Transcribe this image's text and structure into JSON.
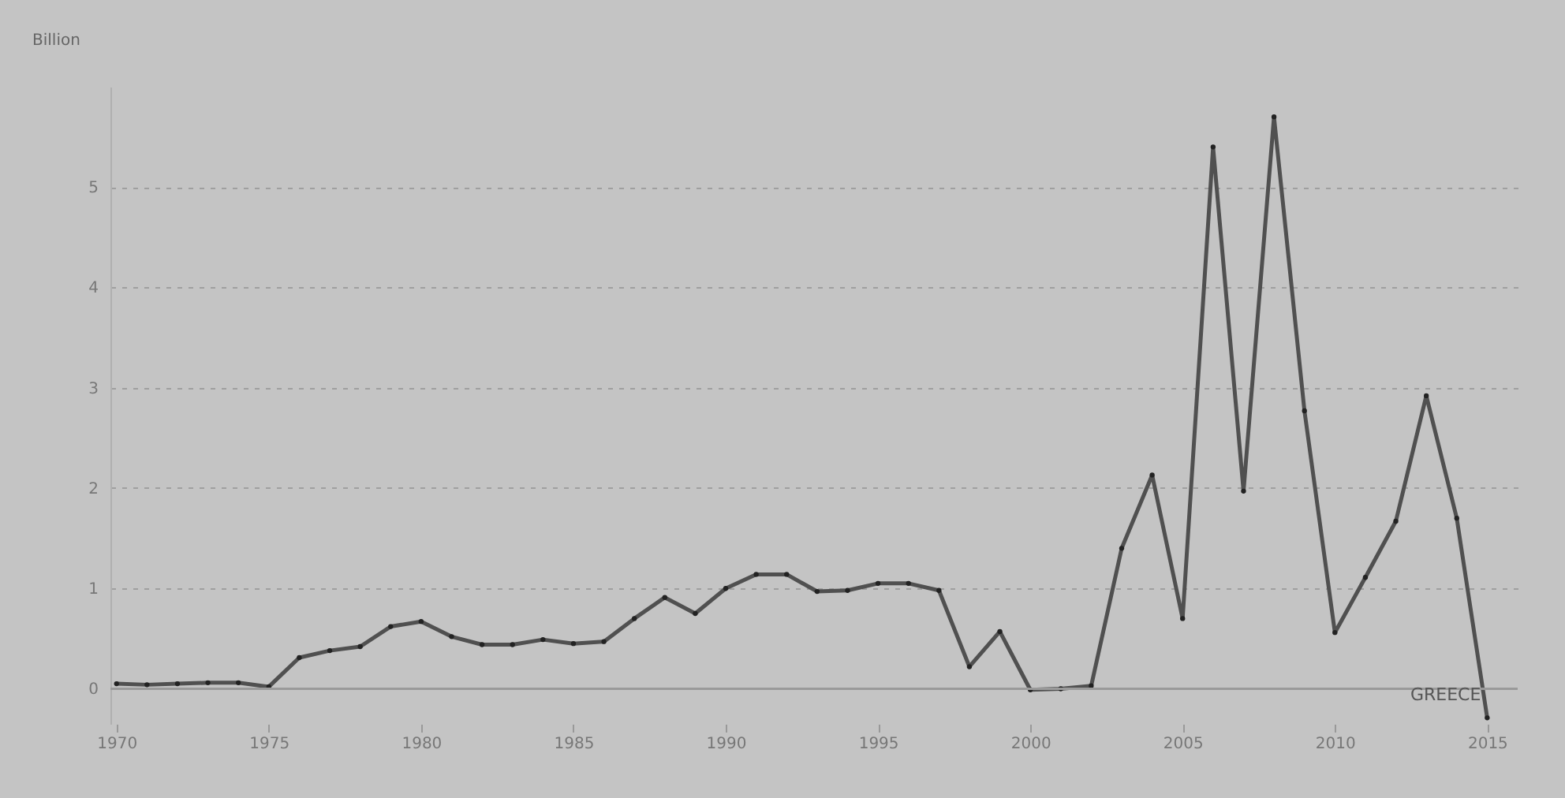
{
  "chart_data": {
    "type": "line",
    "ylabel": "Billion",
    "x": [
      1970,
      1971,
      1972,
      1973,
      1974,
      1975,
      1976,
      1977,
      1978,
      1979,
      1980,
      1981,
      1982,
      1983,
      1984,
      1985,
      1986,
      1987,
      1988,
      1989,
      1990,
      1991,
      1992,
      1993,
      1994,
      1995,
      1996,
      1997,
      1998,
      1999,
      2000,
      2001,
      2002,
      2003,
      2004,
      2005,
      2006,
      2007,
      2008,
      2009,
      2010,
      2011,
      2012,
      2013,
      2014,
      2015
    ],
    "series": [
      {
        "name": "GREECE",
        "color": "#505050",
        "values": [
          0.05,
          0.04,
          0.05,
          0.06,
          0.06,
          0.02,
          0.31,
          0.38,
          0.42,
          0.62,
          0.67,
          0.52,
          0.44,
          0.44,
          0.49,
          0.45,
          0.47,
          0.7,
          0.91,
          0.75,
          1.0,
          1.14,
          1.14,
          0.97,
          0.98,
          1.05,
          1.05,
          0.98,
          0.22,
          0.57,
          -0.01,
          0.0,
          0.03,
          1.4,
          2.13,
          0.7,
          5.4,
          1.97,
          5.7,
          2.77,
          0.56,
          1.11,
          1.67,
          2.92,
          1.7,
          -0.29
        ]
      }
    ],
    "xlim": [
      1969.8,
      2016
    ],
    "xticks": [
      1970,
      1975,
      1980,
      1985,
      1990,
      1995,
      2000,
      2005,
      2010,
      2015
    ],
    "ylim": [
      -0.35,
      6
    ],
    "yticks": [
      0,
      1,
      2,
      3,
      4,
      5
    ],
    "grid": "y",
    "marker": "circle",
    "line_style": "solid",
    "ref_lines": [
      {
        "axis": "y",
        "value": 0,
        "color": "#9a9a9a"
      }
    ]
  }
}
